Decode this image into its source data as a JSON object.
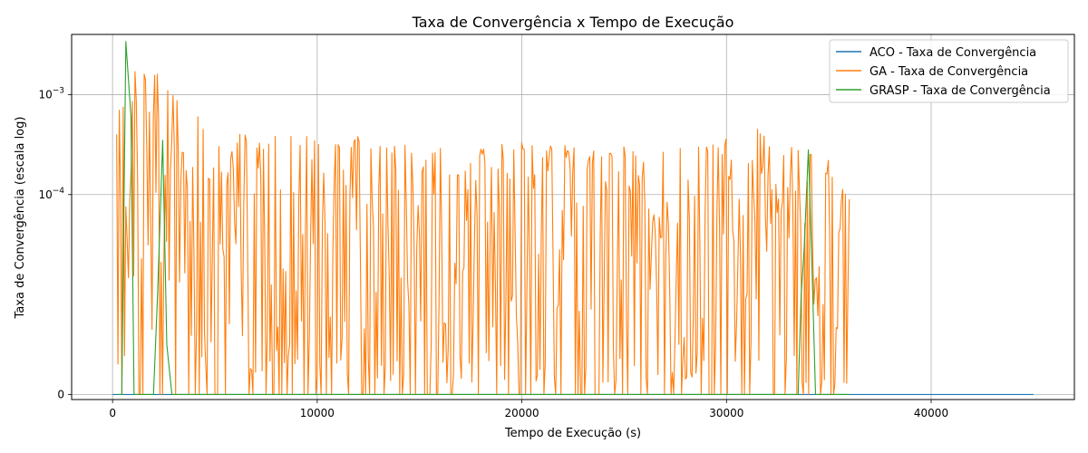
{
  "chart_data": {
    "type": "line",
    "title": "Taxa de Convergência x Tempo de Execução",
    "xlabel": "Tempo de Execução (s)",
    "ylabel": "Taxa de Convergência (escala log)",
    "y_scale": "symlog",
    "y_linthresh": 1e-05,
    "xlim": [
      -2000,
      47000
    ],
    "ylim": [
      -5e-07,
      0.004
    ],
    "grid": true,
    "legend_position": "top-right",
    "x_ticks": [
      {
        "value": 0,
        "label": "0"
      },
      {
        "value": 10000,
        "label": "10000"
      },
      {
        "value": 20000,
        "label": "20000"
      },
      {
        "value": 30000,
        "label": "30000"
      },
      {
        "value": 40000,
        "label": "40000"
      }
    ],
    "y_ticks": [
      {
        "value": 0,
        "label_base": "0",
        "label_exp": ""
      },
      {
        "value": 0.0001,
        "label_base": "10",
        "label_exp": "−4"
      },
      {
        "value": 0.001,
        "label_base": "10",
        "label_exp": "−3"
      }
    ],
    "series": [
      {
        "name": "ACO - Taxa de Convergência",
        "color": "#1f77b4",
        "x": [
          0,
          45000
        ],
        "y": [
          0,
          0
        ]
      },
      {
        "name": "GA - Taxa de Convergência",
        "color": "#ff7f0e",
        "x_start": 200,
        "x_end": 36000,
        "n_points": 560,
        "seed": 7,
        "peaks": [
          {
            "x": 300,
            "y": 0.0007
          },
          {
            "x": 500,
            "y": 0.00075
          },
          {
            "x": 1100,
            "y": 0.0017
          },
          {
            "x": 1550,
            "y": 0.0016
          },
          {
            "x": 2200,
            "y": 0.0016
          },
          {
            "x": 2700,
            "y": 0.0011
          },
          {
            "x": 4200,
            "y": 0.0006
          },
          {
            "x": 6200,
            "y": 0.0004
          },
          {
            "x": 9500,
            "y": 0.00038
          },
          {
            "x": 12000,
            "y": 0.00038
          },
          {
            "x": 16000,
            "y": 0.00029
          },
          {
            "x": 20000,
            "y": 0.00033
          },
          {
            "x": 25000,
            "y": 0.0003
          },
          {
            "x": 29000,
            "y": 0.0003
          },
          {
            "x": 30000,
            "y": 0.00036
          },
          {
            "x": 31500,
            "y": 0.00045
          },
          {
            "x": 35000,
            "y": 0.00022
          },
          {
            "x": 36000,
            "y": 9e-05
          }
        ]
      },
      {
        "name": "GRASP - Taxa de Convergência",
        "color": "#2ca02c",
        "x": [
          300,
          450,
          650,
          900,
          1050,
          1400,
          1800,
          2000,
          2200,
          2450,
          2650,
          2900,
          5000,
          10000,
          20000,
          30000,
          33500,
          33650,
          33800,
          34000,
          34150,
          34350,
          34600,
          36000
        ],
        "y": [
          0,
          0,
          0.0034,
          0.0006,
          0,
          0,
          0,
          0,
          1e-05,
          0.00035,
          5e-06,
          0,
          0,
          0,
          0,
          0,
          0,
          1e-05,
          3e-05,
          0.00028,
          3e-05,
          0,
          0,
          0
        ]
      }
    ]
  }
}
